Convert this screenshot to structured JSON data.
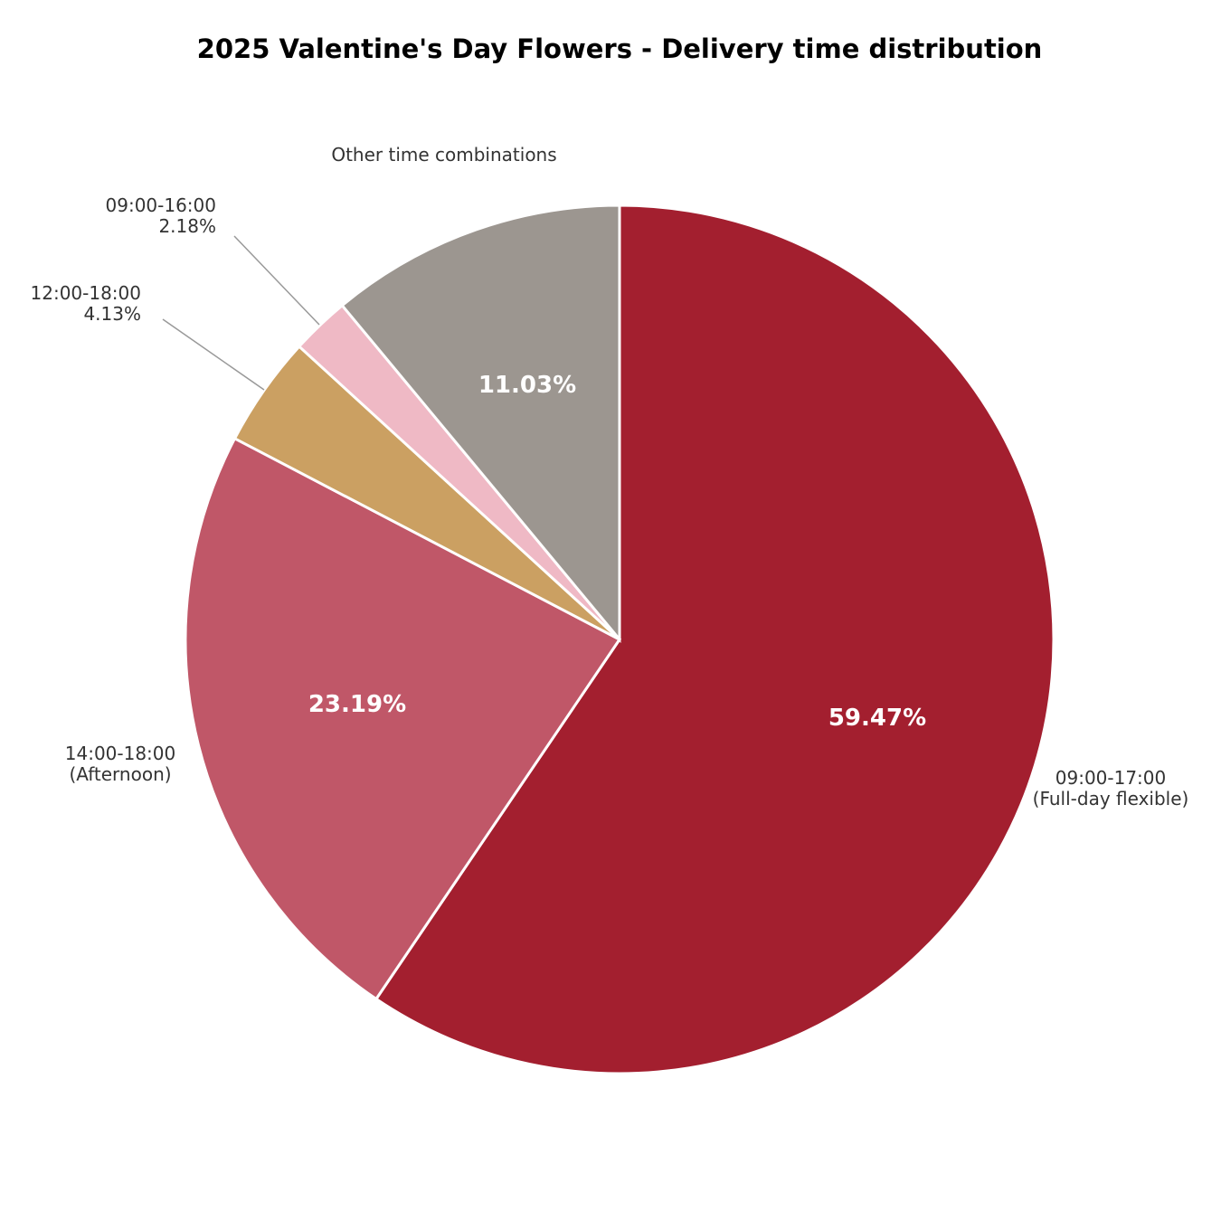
{
  "chart_data": {
    "type": "pie",
    "title": "2025 Valentine's Day Flowers - Delivery time distribution",
    "slices": [
      {
        "lines": [
          "09:00-17:00",
          "(Full-day flexible)"
        ],
        "value": 59.47,
        "pct_label": "59.47%",
        "color": "#a31f2f"
      },
      {
        "lines": [
          "14:00-18:00",
          "(Afternoon)"
        ],
        "value": 23.19,
        "pct_label": "23.19%",
        "color": "#c05768"
      },
      {
        "lines": [
          "12:00-18:00",
          "4.13%"
        ],
        "value": 4.13,
        "pct_label": "",
        "color": "#cba062"
      },
      {
        "lines": [
          "09:00-16:00",
          "2.18%"
        ],
        "value": 2.18,
        "pct_label": "",
        "color": "#efb9c5"
      },
      {
        "lines": [
          "Other time combinations"
        ],
        "value": 11.03,
        "pct_label": "11.03%",
        "color": "#9c9690"
      }
    ],
    "start": "top",
    "direction": "clockwise",
    "legend": "none"
  }
}
